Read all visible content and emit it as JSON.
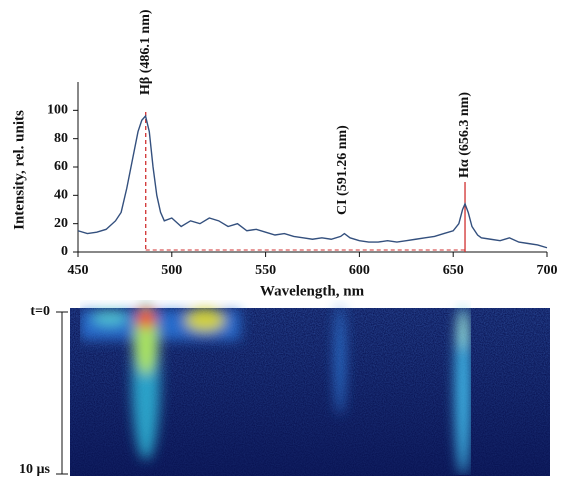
{
  "chart_data": {
    "type": "line",
    "x_label": "Wavelength, nm",
    "y_label": "Intensity, rel. units",
    "x": [
      450,
      455,
      460,
      465,
      470,
      473,
      476,
      479,
      482,
      484,
      486,
      488,
      490,
      492,
      494,
      496,
      500,
      505,
      510,
      515,
      520,
      525,
      530,
      535,
      540,
      545,
      550,
      555,
      560,
      565,
      570,
      575,
      580,
      585,
      590,
      592,
      595,
      600,
      605,
      610,
      615,
      620,
      625,
      630,
      635,
      640,
      645,
      650,
      653,
      655,
      656.3,
      658,
      660,
      663,
      665,
      670,
      675,
      680,
      685,
      690,
      695,
      700
    ],
    "series": [
      {
        "color": "#34507e",
        "values": [
          15,
          13,
          14,
          16,
          22,
          28,
          45,
          65,
          85,
          93,
          96,
          85,
          60,
          40,
          28,
          22,
          24,
          18,
          22,
          20,
          24,
          22,
          18,
          20,
          15,
          16,
          14,
          12,
          13,
          11,
          10,
          9,
          10,
          9,
          11,
          13,
          10,
          8,
          7,
          7,
          8,
          7,
          8,
          9,
          10,
          11,
          13,
          15,
          20,
          30,
          34,
          28,
          18,
          12,
          10,
          9,
          8,
          10,
          7,
          6,
          5,
          3
        ]
      }
    ],
    "xlim": [
      450,
      700
    ],
    "xticks": [
      450,
      500,
      550,
      600,
      650,
      700
    ],
    "ylim": [
      0,
      120
    ],
    "yticks": [
      0,
      20,
      40,
      60,
      80,
      100
    ],
    "annotations": [
      {
        "text": "Hβ (486.1 nm)",
        "x": 486.1
      },
      {
        "text": "CI (591.26 nm)",
        "x": 591.26
      },
      {
        "text": "Hα (656.3 nm)",
        "x": 656.3
      }
    ],
    "time_labels": [
      "t=0",
      "10 µs"
    ]
  }
}
